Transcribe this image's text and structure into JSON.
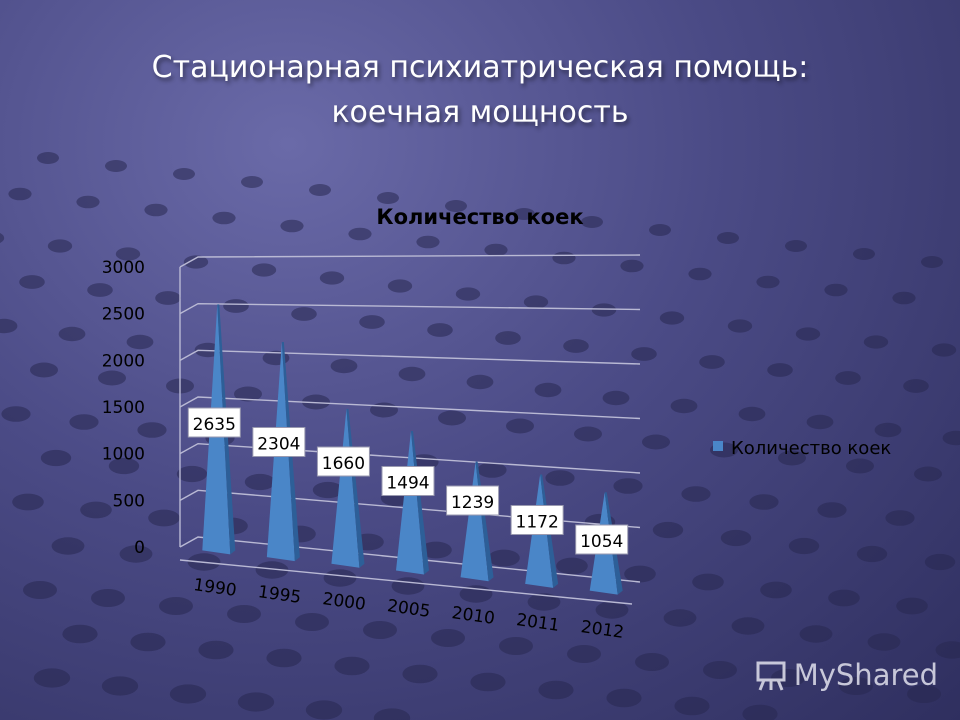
{
  "slide": {
    "title_line1": "Стационарная психиатрическая помощь:",
    "title_line2": "коечная мощность"
  },
  "watermark": {
    "text": "MyShared",
    "icon": "presentation-board-icon"
  },
  "colors": {
    "bar": "#4a86c8",
    "bar_dark": "#2d5f98",
    "label_bg": "#ffffff",
    "text": "#000000"
  },
  "chart_data": {
    "type": "bar",
    "style": "3d-cone",
    "title": "Количество коек",
    "categories": [
      "1990",
      "1995",
      "2000",
      "2005",
      "2010",
      "2011",
      "2012"
    ],
    "series": [
      {
        "name": "Количество коек",
        "values": [
          2635,
          2304,
          1660,
          1494,
          1239,
          1172,
          1054
        ]
      }
    ],
    "yticks": [
      "0",
      "500",
      "1000",
      "1500",
      "2000",
      "2500",
      "3000"
    ],
    "ylim": [
      0,
      3000
    ],
    "grid": true,
    "legend": "right",
    "data_labels": true
  }
}
